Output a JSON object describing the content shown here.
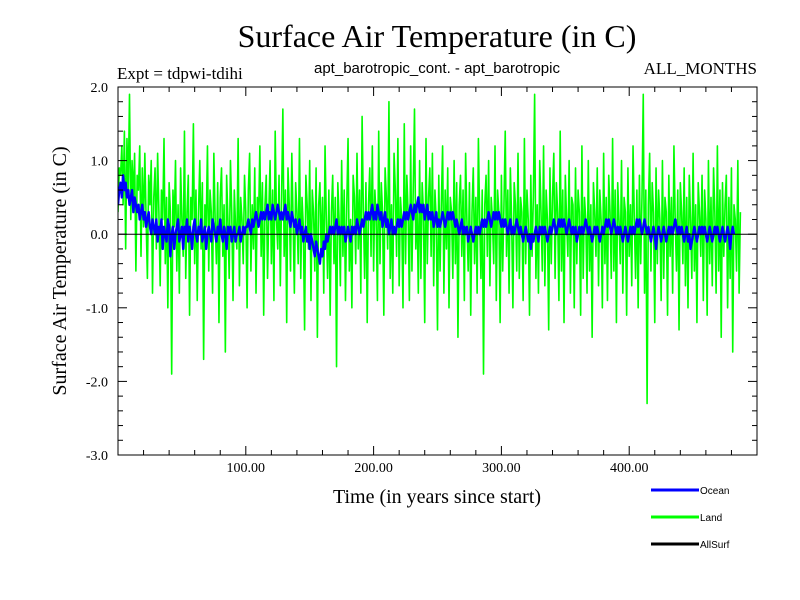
{
  "chart_data": {
    "type": "line",
    "title": "Surface Air Temperature (in C)",
    "subtitle_left": "Expt = tdpwi-tdihi",
    "subtitle_center": "apt_barotropic_cont. - apt_barotropic",
    "subtitle_right": "ALL_MONTHS",
    "xlabel": "Time (in years since start)",
    "ylabel": "Surface Air Temperature (in C)",
    "xlim": [
      0,
      500
    ],
    "ylim": [
      -3.0,
      2.0
    ],
    "x_ticks": [
      100,
      200,
      300,
      400
    ],
    "x_tick_labels": [
      "100.00",
      "200.00",
      "300.00",
      "400.00"
    ],
    "y_ticks": [
      -3.0,
      -2.0,
      -1.0,
      0.0,
      1.0,
      2.0
    ],
    "y_tick_labels": [
      "-3.0",
      "-2.0",
      "-1.0",
      "0.0",
      "1.0",
      "2.0"
    ],
    "x_minor_step": 20,
    "y_minor_step": 0.2,
    "legend_position": "bottom-right",
    "series": [
      {
        "name": "Land",
        "color": "#00ff00",
        "x_start": 0,
        "x_step": 1,
        "values": [
          0.3,
          0.9,
          0.8,
          1.2,
          0.4,
          1.4,
          -0.2,
          1.3,
          0.6,
          1.9,
          0.2,
          1.0,
          0.5,
          1.1,
          -0.5,
          0.8,
          0.6,
          1.2,
          -0.3,
          0.9,
          0.1,
          1.1,
          0.2,
          -0.6,
          0.8,
          0.4,
          1.0,
          -0.8,
          0.5,
          0.9,
          -0.2,
          1.1,
          0.3,
          -0.7,
          0.6,
          0.2,
          1.3,
          -0.4,
          0.5,
          -1.0,
          0.7,
          0.3,
          -1.9,
          0.6,
          0.1,
          1.0,
          -0.5,
          0.4,
          -0.8,
          0.9,
          0.2,
          -0.3,
          1.4,
          -0.6,
          0.3,
          0.8,
          -1.1,
          0.5,
          0.2,
          1.5,
          -0.4,
          0.6,
          -0.9,
          0.3,
          1.0,
          -0.2,
          0.7,
          -1.7,
          0.4,
          0.1,
          1.2,
          -0.5,
          0.6,
          0.3,
          -0.8,
          1.1,
          0.2,
          -0.4,
          0.7,
          -1.2,
          0.5,
          0.9,
          -0.3,
          0.4,
          -1.6,
          0.8,
          0.2,
          -0.6,
          1.0,
          0.3,
          -0.9,
          0.6,
          0.1,
          -0.2,
          1.3,
          -0.7,
          0.5,
          0.2,
          -0.4,
          0.8,
          0.3,
          -1.0,
          0.6,
          1.1,
          -0.5,
          0.4,
          -0.2,
          0.9,
          -0.8,
          0.5,
          0.2,
          1.2,
          -0.3,
          0.7,
          -1.1,
          0.4,
          0.8,
          -0.6,
          0.3,
          1.0,
          -0.4,
          0.6,
          -0.9,
          1.4,
          0.2,
          -0.2,
          0.8,
          -0.7,
          0.5,
          1.7,
          -0.3,
          0.6,
          -1.2,
          0.9,
          0.4,
          -0.5,
          1.1,
          0.2,
          -0.8,
          0.7,
          0.3,
          -0.4,
          1.3,
          -0.6,
          0.5,
          0.1,
          -1.3,
          0.8,
          0.4,
          -0.2,
          1.0,
          -0.9,
          0.6,
          0.3,
          -0.5,
          0.9,
          -1.4,
          0.4,
          0.7,
          -0.3,
          0.5,
          -0.8,
          1.2,
          0.2,
          -0.6,
          0.6,
          -1.1,
          0.3,
          0.8,
          -0.4,
          0.5,
          -1.8,
          0.7,
          0.2,
          -0.7,
          1.0,
          -0.3,
          0.6,
          -0.9,
          0.4,
          1.3,
          -0.5,
          0.2,
          -1.0,
          0.8,
          0.5,
          -0.4,
          1.1,
          -0.2,
          0.6,
          -0.8,
          1.6,
          0.3,
          -0.6,
          0.7,
          -1.2,
          0.4,
          0.9,
          -0.3,
          1.2,
          -0.5,
          0.6,
          0.2,
          -0.9,
          1.4,
          -0.4,
          0.7,
          0.3,
          -1.1,
          0.9,
          0.5,
          -0.2,
          1.8,
          -0.6,
          0.4,
          -0.8,
          1.1,
          0.6,
          -0.3,
          1.3,
          -0.7,
          0.5,
          0.2,
          -1.0,
          1.5,
          -0.4,
          0.8,
          0.3,
          -0.9,
          1.2,
          -0.5,
          0.6,
          1.7,
          -0.2,
          0.4,
          -0.8,
          1.0,
          -0.6,
          0.7,
          0.3,
          -1.2,
          1.3,
          -0.4,
          0.5,
          0.9,
          -0.3,
          1.1,
          -0.7,
          0.6,
          0.2,
          -1.3,
          0.8,
          -0.5,
          0.4,
          1.2,
          -0.8,
          0.6,
          -0.2,
          0.9,
          -1.0,
          0.5,
          0.3,
          -0.6,
          1.0,
          -0.4,
          0.7,
          -1.4,
          0.4,
          0.8,
          -0.3,
          0.6,
          -0.9,
          1.1,
          0.2,
          -0.5,
          0.7,
          -1.1,
          0.3,
          0.9,
          -0.4,
          0.5,
          -0.8,
          1.3,
          0.2,
          -0.6,
          0.6,
          -1.9,
          0.4,
          0.8,
          -0.3,
          1.0,
          -0.7,
          0.5,
          0.2,
          -0.4,
          1.2,
          -0.9,
          0.6,
          0.3,
          -1.2,
          0.8,
          -0.5,
          0.4,
          1.4,
          -0.3,
          0.6,
          -0.8,
          0.9,
          0.2,
          -1.0,
          0.7,
          0.4,
          -0.5,
          1.1,
          -0.6,
          0.5,
          0.3,
          -0.9,
          1.3,
          -0.4,
          0.6,
          0.2,
          -1.1,
          0.8,
          -0.3,
          0.5,
          1.9,
          -0.6,
          0.4,
          -0.8,
          1.0,
          0.3,
          -0.5,
          1.2,
          -0.7,
          0.6,
          0.2,
          -1.3,
          0.9,
          -0.4,
          0.5,
          1.1,
          -0.6,
          0.7,
          0.3,
          -0.9,
          1.4,
          -0.5,
          0.6,
          -1.2,
          0.8,
          0.2,
          -0.3,
          1.0,
          -0.8,
          0.5,
          0.4,
          -1.0,
          0.9,
          -0.4,
          0.6,
          0.3,
          -1.1,
          1.2,
          -0.6,
          0.5,
          0.2,
          -0.8,
          1.0,
          -0.5,
          0.4,
          -1.4,
          0.7,
          0.3,
          -0.3,
          0.9,
          -0.7,
          0.6,
          0.2,
          -1.0,
          1.1,
          -0.4,
          0.5,
          -0.9,
          0.8,
          0.3,
          -0.6,
          1.3,
          -0.5,
          0.6,
          -1.2,
          0.7,
          0.2,
          -0.4,
          1.0,
          -0.8,
          0.5,
          0.3,
          -1.1,
          0.9,
          -0.3,
          0.4,
          -0.7,
          1.2,
          0.2,
          -0.6,
          0.6,
          -1.0,
          0.8,
          -0.4,
          0.5,
          1.9,
          -0.8,
          0.6,
          -2.3,
          0.4,
          1.1,
          -0.5,
          0.7,
          0.3,
          -1.2,
          0.9,
          -0.4,
          0.6,
          0.2,
          -0.9,
          1.0,
          -0.6,
          0.5,
          0.3,
          -1.1,
          0.8,
          -0.3,
          0.5,
          -0.8,
          1.2,
          0.2,
          -0.5,
          0.6,
          -1.3,
          0.7,
          0.3,
          -0.4,
          0.9,
          -0.7,
          0.5,
          -1.0,
          0.8,
          0.2,
          -0.6,
          1.1,
          -0.5,
          0.4,
          -1.2,
          0.7,
          0.3,
          -0.3,
          0.8,
          -0.9,
          0.6,
          0.2,
          -1.1,
          1.0,
          -0.4,
          0.5,
          -0.7,
          0.9,
          0.3,
          -0.8,
          1.2,
          -0.5,
          0.6,
          -1.4,
          0.7,
          -0.3,
          0.4,
          0.8,
          -1.0,
          0.5,
          -0.6,
          0.9,
          -1.6,
          0.4,
          0.2,
          -0.5,
          1.0,
          -0.8,
          0.3
        ]
      },
      {
        "name": "Ocean",
        "color": "#0000ff",
        "x_start": 0,
        "x_step": 1,
        "values": [
          0.4,
          0.6,
          0.7,
          0.5,
          0.8,
          0.6,
          0.7,
          0.5,
          0.6,
          0.4,
          0.5,
          0.6,
          0.3,
          0.5,
          0.4,
          0.3,
          0.4,
          0.2,
          0.3,
          0.4,
          0.2,
          0.3,
          0.1,
          0.2,
          0.3,
          0.1,
          0.0,
          0.2,
          0.1,
          0.0,
          0.2,
          -0.1,
          0.1,
          0.0,
          0.2,
          -0.2,
          0.1,
          0.0,
          -0.1,
          0.2,
          0.1,
          -0.3,
          0.0,
          0.1,
          -0.2,
          0.0,
          0.1,
          0.2,
          -0.1,
          0.0,
          0.1,
          -0.2,
          0.1,
          0.0,
          0.2,
          -0.1,
          0.1,
          0.0,
          -0.2,
          0.1,
          0.2,
          0.0,
          -0.1,
          0.1,
          0.0,
          0.2,
          -0.1,
          0.0,
          0.1,
          -0.2,
          0.0,
          0.1,
          0.0,
          -0.1,
          0.2,
          0.1,
          0.0,
          -0.1,
          0.1,
          0.0,
          0.2,
          0.0,
          -0.1,
          0.1,
          0.0,
          -0.2,
          0.1,
          0.0,
          0.1,
          -0.1,
          0.0,
          0.1,
          -0.1,
          0.0,
          0.0,
          0.1,
          -0.1,
          0.0,
          0.1,
          0.0,
          0.1,
          0.1,
          0.2,
          0.1,
          0.0,
          0.2,
          0.1,
          0.2,
          0.3,
          0.2,
          0.1,
          0.2,
          0.3,
          0.2,
          0.3,
          0.2,
          0.3,
          0.4,
          0.2,
          0.3,
          0.2,
          0.4,
          0.3,
          0.2,
          0.3,
          0.4,
          0.3,
          0.2,
          0.3,
          0.2,
          0.3,
          0.4,
          0.2,
          0.3,
          0.2,
          0.1,
          0.3,
          0.2,
          0.1,
          0.2,
          0.0,
          0.1,
          0.2,
          0.0,
          0.1,
          -0.1,
          0.0,
          0.1,
          -0.1,
          0.0,
          -0.2,
          0.0,
          -0.1,
          -0.2,
          -0.3,
          -0.1,
          -0.2,
          -0.3,
          -0.4,
          -0.2,
          -0.3,
          -0.1,
          -0.2,
          0.0,
          -0.1,
          0.0,
          0.1,
          0.0,
          0.1,
          0.0,
          0.1,
          0.2,
          0.0,
          0.1,
          0.0,
          0.1,
          0.0,
          0.1,
          -0.1,
          0.0,
          0.1,
          0.0,
          -0.1,
          0.1,
          0.0,
          0.1,
          0.0,
          0.2,
          0.1,
          0.0,
          0.1,
          0.2,
          0.1,
          0.2,
          0.3,
          0.2,
          0.3,
          0.2,
          0.3,
          0.4,
          0.2,
          0.3,
          0.2,
          0.4,
          0.3,
          0.2,
          0.3,
          0.1,
          0.2,
          0.3,
          0.1,
          0.2,
          0.0,
          0.1,
          0.2,
          0.0,
          0.1,
          0.0,
          0.1,
          0.2,
          0.1,
          0.2,
          0.1,
          0.2,
          0.3,
          0.2,
          0.3,
          0.2,
          0.3,
          0.4,
          0.3,
          0.2,
          0.4,
          0.3,
          0.4,
          0.5,
          0.3,
          0.4,
          0.3,
          0.4,
          0.2,
          0.3,
          0.4,
          0.2,
          0.3,
          0.2,
          0.3,
          0.1,
          0.2,
          0.3,
          0.1,
          0.2,
          0.1,
          0.2,
          0.3,
          0.2,
          0.1,
          0.2,
          0.3,
          0.2,
          0.3,
          0.2,
          0.3,
          0.2,
          0.1,
          0.2,
          0.1,
          0.0,
          0.1,
          0.2,
          0.0,
          0.1,
          0.0,
          0.1,
          -0.1,
          0.0,
          0.1,
          0.0,
          -0.1,
          0.0,
          0.1,
          0.0,
          0.1,
          0.0,
          0.1,
          0.2,
          0.1,
          0.2,
          0.1,
          0.2,
          0.3,
          0.2,
          0.1,
          0.2,
          0.3,
          0.2,
          0.3,
          0.2,
          0.3,
          0.2,
          0.1,
          0.2,
          0.1,
          0.2,
          0.1,
          0.0,
          0.1,
          0.2,
          0.0,
          0.1,
          0.0,
          0.1,
          0.2,
          0.1,
          0.0,
          0.1,
          0.0,
          -0.1,
          0.0,
          0.1,
          0.0,
          -0.1,
          0.0,
          -0.2,
          0.0,
          -0.1,
          0.0,
          0.1,
          0.0,
          -0.1,
          0.1,
          0.0,
          0.1,
          0.0,
          0.1,
          0.0,
          -0.1,
          0.0,
          0.1,
          0.0,
          0.1,
          0.2,
          0.1,
          0.0,
          0.1,
          0.2,
          0.1,
          0.2,
          0.1,
          0.2,
          0.1,
          0.0,
          0.1,
          0.2,
          0.1,
          0.0,
          0.1,
          0.0,
          0.1,
          -0.1,
          0.0,
          0.1,
          0.0,
          0.1,
          0.0,
          0.1,
          0.2,
          0.1,
          0.0,
          0.1,
          0.0,
          -0.1,
          0.0,
          0.1,
          0.0,
          0.1,
          0.0,
          -0.1,
          0.0,
          0.1,
          0.0,
          0.1,
          0.2,
          0.1,
          0.2,
          0.1,
          0.0,
          0.1,
          0.2,
          0.1,
          0.0,
          0.1,
          0.0,
          0.1,
          0.0,
          -0.1,
          0.0,
          0.1,
          0.0,
          -0.1,
          0.0,
          0.1,
          0.0,
          0.1,
          0.0,
          0.1,
          0.2,
          0.1,
          0.2,
          0.1,
          0.0,
          0.1,
          0.2,
          0.1,
          0.0,
          0.1,
          0.0,
          -0.1,
          0.0,
          0.1,
          0.0,
          -0.2,
          0.0,
          0.1,
          0.0,
          -0.1,
          0.0,
          0.1,
          0.0,
          -0.1,
          0.0,
          0.1,
          0.0,
          0.1,
          0.0,
          0.1,
          0.2,
          0.1,
          0.0,
          0.1,
          0.0,
          0.1,
          0.0,
          -0.1,
          0.0,
          0.1,
          -0.1,
          0.0,
          -0.2,
          -0.1,
          0.0,
          0.1,
          0.0,
          -0.1,
          0.0,
          0.1,
          0.0,
          0.1,
          0.0,
          0.1,
          0.0,
          -0.1,
          0.0,
          0.1,
          0.0,
          -0.1,
          0.0,
          0.1,
          0.0,
          0.1,
          0.0,
          -0.1,
          0.0,
          0.1,
          0.0,
          -0.1,
          0.0,
          0.1,
          0.0,
          -0.2,
          0.0,
          0.1,
          0.0
        ]
      },
      {
        "name": "AllSurf",
        "color": "#000000",
        "x_start": 0,
        "x_step": 1,
        "values": []
      }
    ],
    "reference_line": {
      "y": 0.0,
      "color": "#000000"
    }
  }
}
